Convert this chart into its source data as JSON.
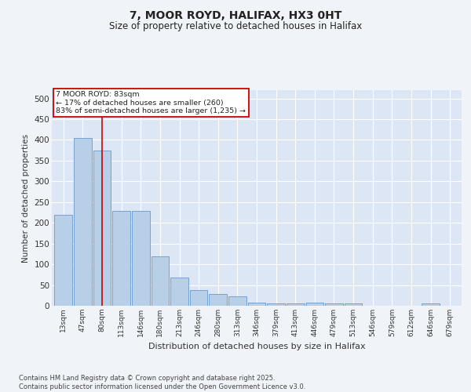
{
  "title": "7, MOOR ROYD, HALIFAX, HX3 0HT",
  "subtitle": "Size of property relative to detached houses in Halifax",
  "xlabel": "Distribution of detached houses by size in Halifax",
  "ylabel": "Number of detached properties",
  "bar_categories": [
    "13sqm",
    "47sqm",
    "80sqm",
    "113sqm",
    "146sqm",
    "180sqm",
    "213sqm",
    "246sqm",
    "280sqm",
    "313sqm",
    "346sqm",
    "379sqm",
    "413sqm",
    "446sqm",
    "479sqm",
    "513sqm",
    "546sqm",
    "579sqm",
    "612sqm",
    "646sqm",
    "679sqm"
  ],
  "bar_values": [
    220,
    405,
    375,
    228,
    228,
    120,
    68,
    38,
    28,
    22,
    8,
    5,
    5,
    8,
    5,
    5,
    0,
    0,
    0,
    5,
    0
  ],
  "bar_color": "#b8cfe8",
  "bar_edgecolor": "#6699cc",
  "background_color": "#dce6f5",
  "grid_color": "#ffffff",
  "fig_background": "#f0f4f8",
  "vline_x_index": 2,
  "vline_color": "#cc0000",
  "annotation_line1": "7 MOOR ROYD: 83sqm",
  "annotation_line2": "← 17% of detached houses are smaller (260)",
  "annotation_line3": "83% of semi-detached houses are larger (1,235) →",
  "annotation_box_color": "#ffffff",
  "annotation_box_edgecolor": "#cc0000",
  "ylim": [
    0,
    520
  ],
  "yticks": [
    0,
    50,
    100,
    150,
    200,
    250,
    300,
    350,
    400,
    450,
    500
  ],
  "footnote1": "Contains HM Land Registry data © Crown copyright and database right 2025.",
  "footnote2": "Contains public sector information licensed under the Open Government Licence v3.0."
}
